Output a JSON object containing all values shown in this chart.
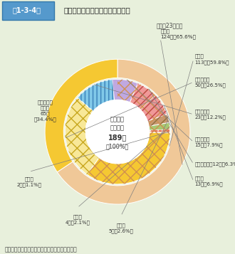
{
  "background_color": "#e8f0dc",
  "title_box": "第1-3-4図",
  "title_main": "出火原因物質別火災事故発生件数",
  "subtitle": "（平成23年中）",
  "center_lines": [
    "火災事故",
    "発生総数",
    "189件",
    "（100%）"
  ],
  "note": "（備考）　「危険物に係る事故報告」により作成",
  "total": 189,
  "header_bg": "#5599cc",
  "header_border": "#3377aa",
  "outer_segments": [
    {
      "label": "危険物\n124件（65.6%）",
      "value": 124,
      "color": "#f0c898",
      "hatch": "",
      "hatch_color": "#c89060"
    },
    {
      "label": "危険物以外\nのもの\n65件\n（34.4%）",
      "value": 65,
      "color": "#f5c832",
      "hatch": "",
      "hatch_color": "#d0a810"
    }
  ],
  "inner_segments": [
    {
      "label": "第４類\n113件（59.8%）",
      "value": 113,
      "color": "#f2c4a4",
      "hatch": "xx",
      "hatch_color": "#d09050"
    },
    {
      "label": "第１石油類\n50件（26.5%）",
      "value": 50,
      "color": "#f8e898",
      "hatch": "xx",
      "hatch_color": "#c8a820"
    },
    {
      "label": "第３石油類\n23件（12.2%）",
      "value": 23,
      "color": "#80c8e8",
      "hatch": "|||",
      "hatch_color": "#3880b8"
    },
    {
      "label": "第４石油類\n15件（7.9%）",
      "value": 15,
      "color": "#c0a8e0",
      "hatch": "vvv",
      "hatch_color": "#8858b8"
    },
    {
      "label": "第２石油類　12件（6.3%）",
      "value": 12,
      "color": "#f09898",
      "hatch": "///",
      "hatch_color": "#c04848"
    },
    {
      "label": "その他\n13件（6.9%）",
      "value": 13,
      "color": "#f09898",
      "hatch": "///",
      "hatch_color": "#c04848"
    },
    {
      "label": "第３類\n5件（2.6%）",
      "value": 5,
      "color": "#c89870",
      "hatch": "///",
      "hatch_color": "#907040"
    },
    {
      "label": "第５類\n4件（2.1%）",
      "value": 4,
      "color": "#a8c870",
      "hatch": "",
      "hatch_color": "#70a030"
    },
    {
      "label": "第２類\n2件（1.1%）",
      "value": 2,
      "color": "#f8c0b0",
      "hatch": "ooo",
      "hatch_color": "#e07858"
    },
    {
      "label": "危険物以外のもの65件",
      "value": 65,
      "color": "#f5c832",
      "hatch": "",
      "hatch_color": "#d0a810"
    }
  ],
  "r_inner_in": 0.46,
  "r_inner_out": 0.76,
  "r_outer_in": 0.78,
  "r_outer_out": 1.05
}
